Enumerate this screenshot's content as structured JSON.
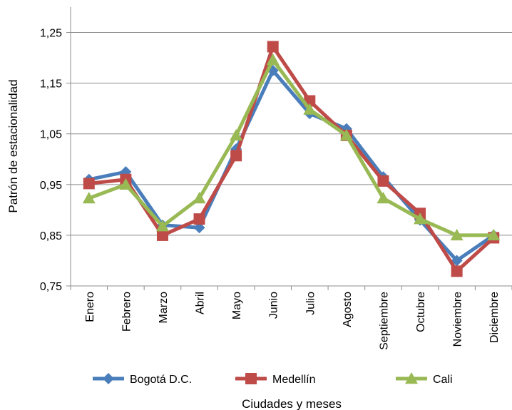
{
  "chart_data": {
    "type": "line",
    "categories": [
      "Enero",
      "Febrero",
      "Marzo",
      "Abril",
      "Mayo",
      "Junio",
      "Julio",
      "Agosto",
      "Septiembre",
      "Octubre",
      "Noviembre",
      "Diciembre"
    ],
    "series": [
      {
        "name": "Bogotá D.C.",
        "color": "#4A7EBB",
        "marker": "diamond",
        "values": [
          0.96,
          0.975,
          0.87,
          0.865,
          1.02,
          1.175,
          1.09,
          1.06,
          0.965,
          0.88,
          0.8,
          0.85
        ]
      },
      {
        "name": "Medellín",
        "color": "#BE4B48",
        "marker": "square",
        "values": [
          0.952,
          0.96,
          0.85,
          0.882,
          1.007,
          1.222,
          1.115,
          1.047,
          0.957,
          0.893,
          0.779,
          0.845
        ]
      },
      {
        "name": "Cali",
        "color": "#98B954",
        "marker": "triangle",
        "values": [
          0.923,
          0.95,
          0.868,
          0.923,
          1.047,
          1.196,
          1.098,
          1.047,
          0.923,
          0.882,
          0.85,
          0.85
        ]
      }
    ],
    "yticks": [
      "0,75",
      "0,85",
      "0,95",
      "1,05",
      "1,15",
      "1,25"
    ],
    "ylim": [
      0.75,
      1.3
    ],
    "xlabel": "Ciudades y meses",
    "ylabel": "Patrón de estacionalidad",
    "grid": true,
    "legend_position": "bottom"
  }
}
